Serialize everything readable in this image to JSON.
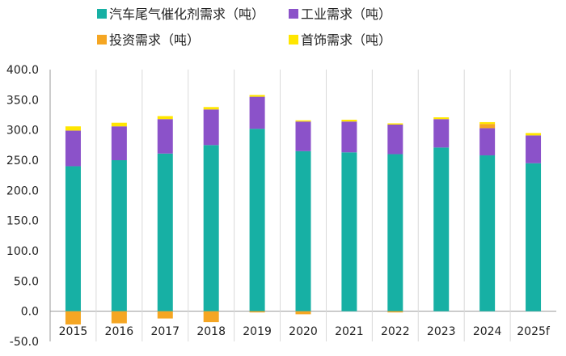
{
  "chart_data": {
    "type": "bar",
    "stacked": true,
    "title": "",
    "xlabel": "",
    "ylabel": "",
    "ylim": [
      -50,
      400
    ],
    "y_ticks": [
      "400.0",
      "350.0",
      "300.0",
      "250.0",
      "200.0",
      "150.0",
      "100.0",
      "50.0",
      "0.0",
      "-50.0"
    ],
    "grid": "vertical separators between categories",
    "legend_position": "top",
    "categories": [
      "2015",
      "2016",
      "2017",
      "2018",
      "2019",
      "2020",
      "2021",
      "2022",
      "2023",
      "2024",
      "2025f"
    ],
    "series": [
      {
        "name": "汽车尾气催化剂需求（吨）",
        "color": "#17B0A4",
        "values": [
          240,
          250,
          261,
          275,
          302,
          265,
          263,
          260,
          271,
          258,
          245
        ]
      },
      {
        "name": "工业需求（吨）",
        "color": "#8B52C9",
        "values": [
          59,
          56,
          57,
          59,
          53,
          49,
          51,
          49,
          47,
          45,
          46
        ]
      },
      {
        "name": "投资需求（吨）",
        "color": "#F5A623",
        "values": [
          -22,
          -20,
          -12,
          -18,
          -2,
          -5,
          0,
          -2,
          0,
          7,
          0
        ]
      },
      {
        "name": "首饰需求（吨）",
        "color": "#FFE600",
        "values": [
          7,
          6,
          5,
          4,
          3,
          2,
          3,
          2,
          3,
          3,
          4
        ]
      }
    ]
  }
}
